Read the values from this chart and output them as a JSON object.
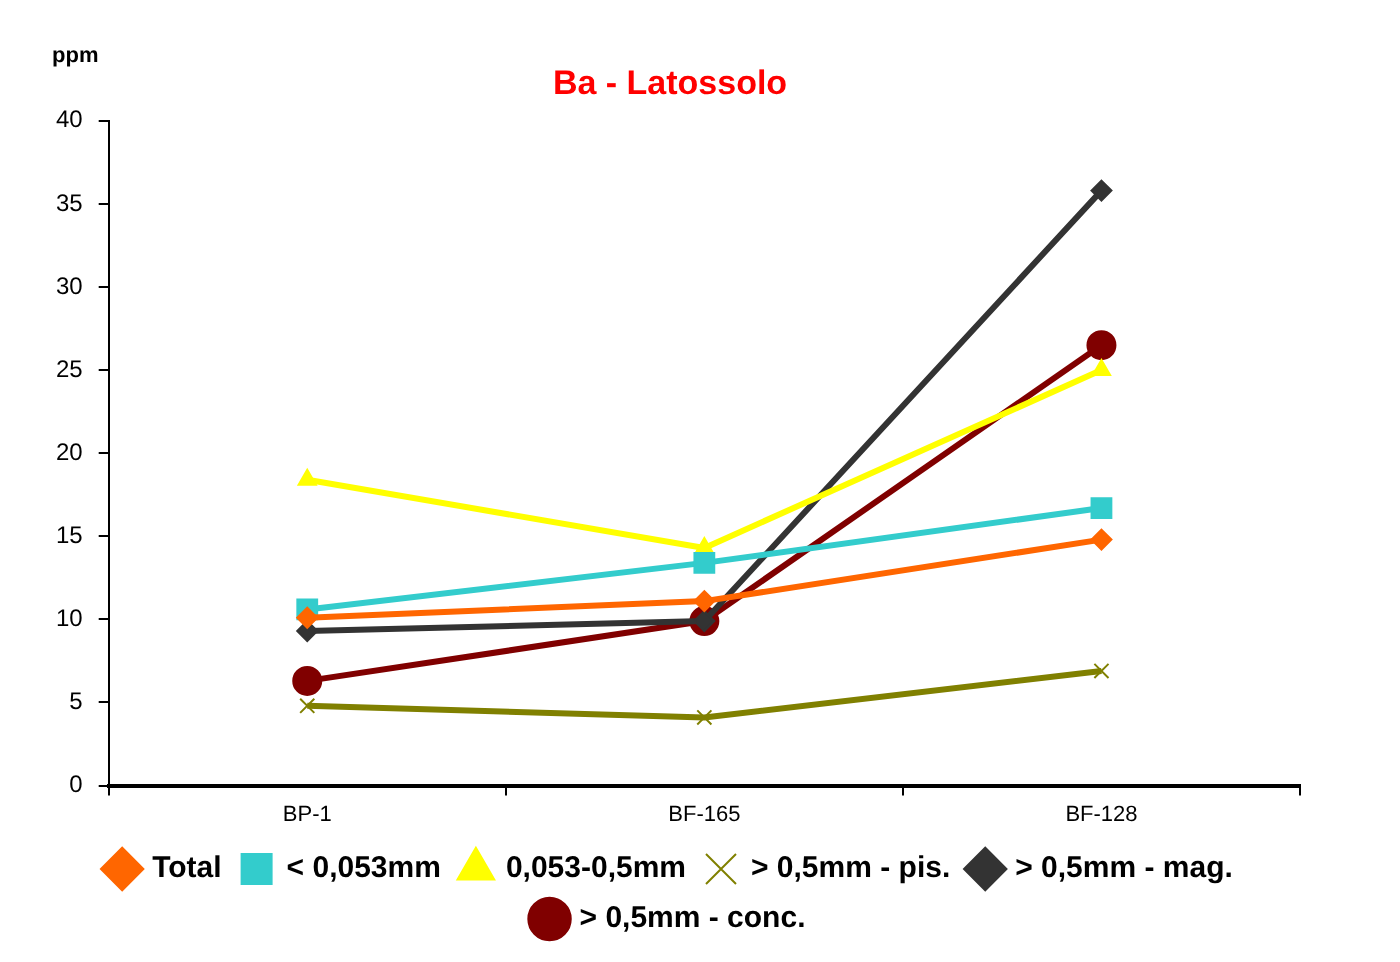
{
  "chart_data": {
    "type": "line",
    "title": "Ba - Latossolo",
    "ylabel": "ppm",
    "categories": [
      "BP-1",
      "BF-165",
      "BF-128"
    ],
    "ylim": [
      0,
      40
    ],
    "yticks": [
      0,
      5,
      10,
      15,
      20,
      25,
      30,
      35,
      40
    ],
    "grid": false,
    "legend": "bottom",
    "line_style": "solid",
    "series": [
      {
        "name": "Total",
        "color": "#ff6600",
        "marker": "diamond",
        "values": [
          10.1,
          11.1,
          14.8
        ]
      },
      {
        "name": "< 0,053mm",
        "color": "#33cccc",
        "marker": "square",
        "values": [
          10.6,
          13.4,
          16.7
        ]
      },
      {
        "name": "0,053-0,5mm",
        "color": "#ffff00",
        "marker": "triangle",
        "values": [
          18.4,
          14.3,
          25.0
        ]
      },
      {
        "name": "> 0,5mm - pis.",
        "color": "#808000",
        "marker": "cross",
        "values": [
          4.8,
          4.1,
          6.9
        ]
      },
      {
        "name": "> 0,5mm - mag.",
        "color": "#333333",
        "marker": "diamond",
        "values": [
          9.3,
          9.9,
          35.8
        ]
      },
      {
        "name": "> 0,5mm - conc.",
        "color": "#800000",
        "marker": "circle",
        "values": [
          6.3,
          9.9,
          26.5
        ]
      }
    ]
  }
}
